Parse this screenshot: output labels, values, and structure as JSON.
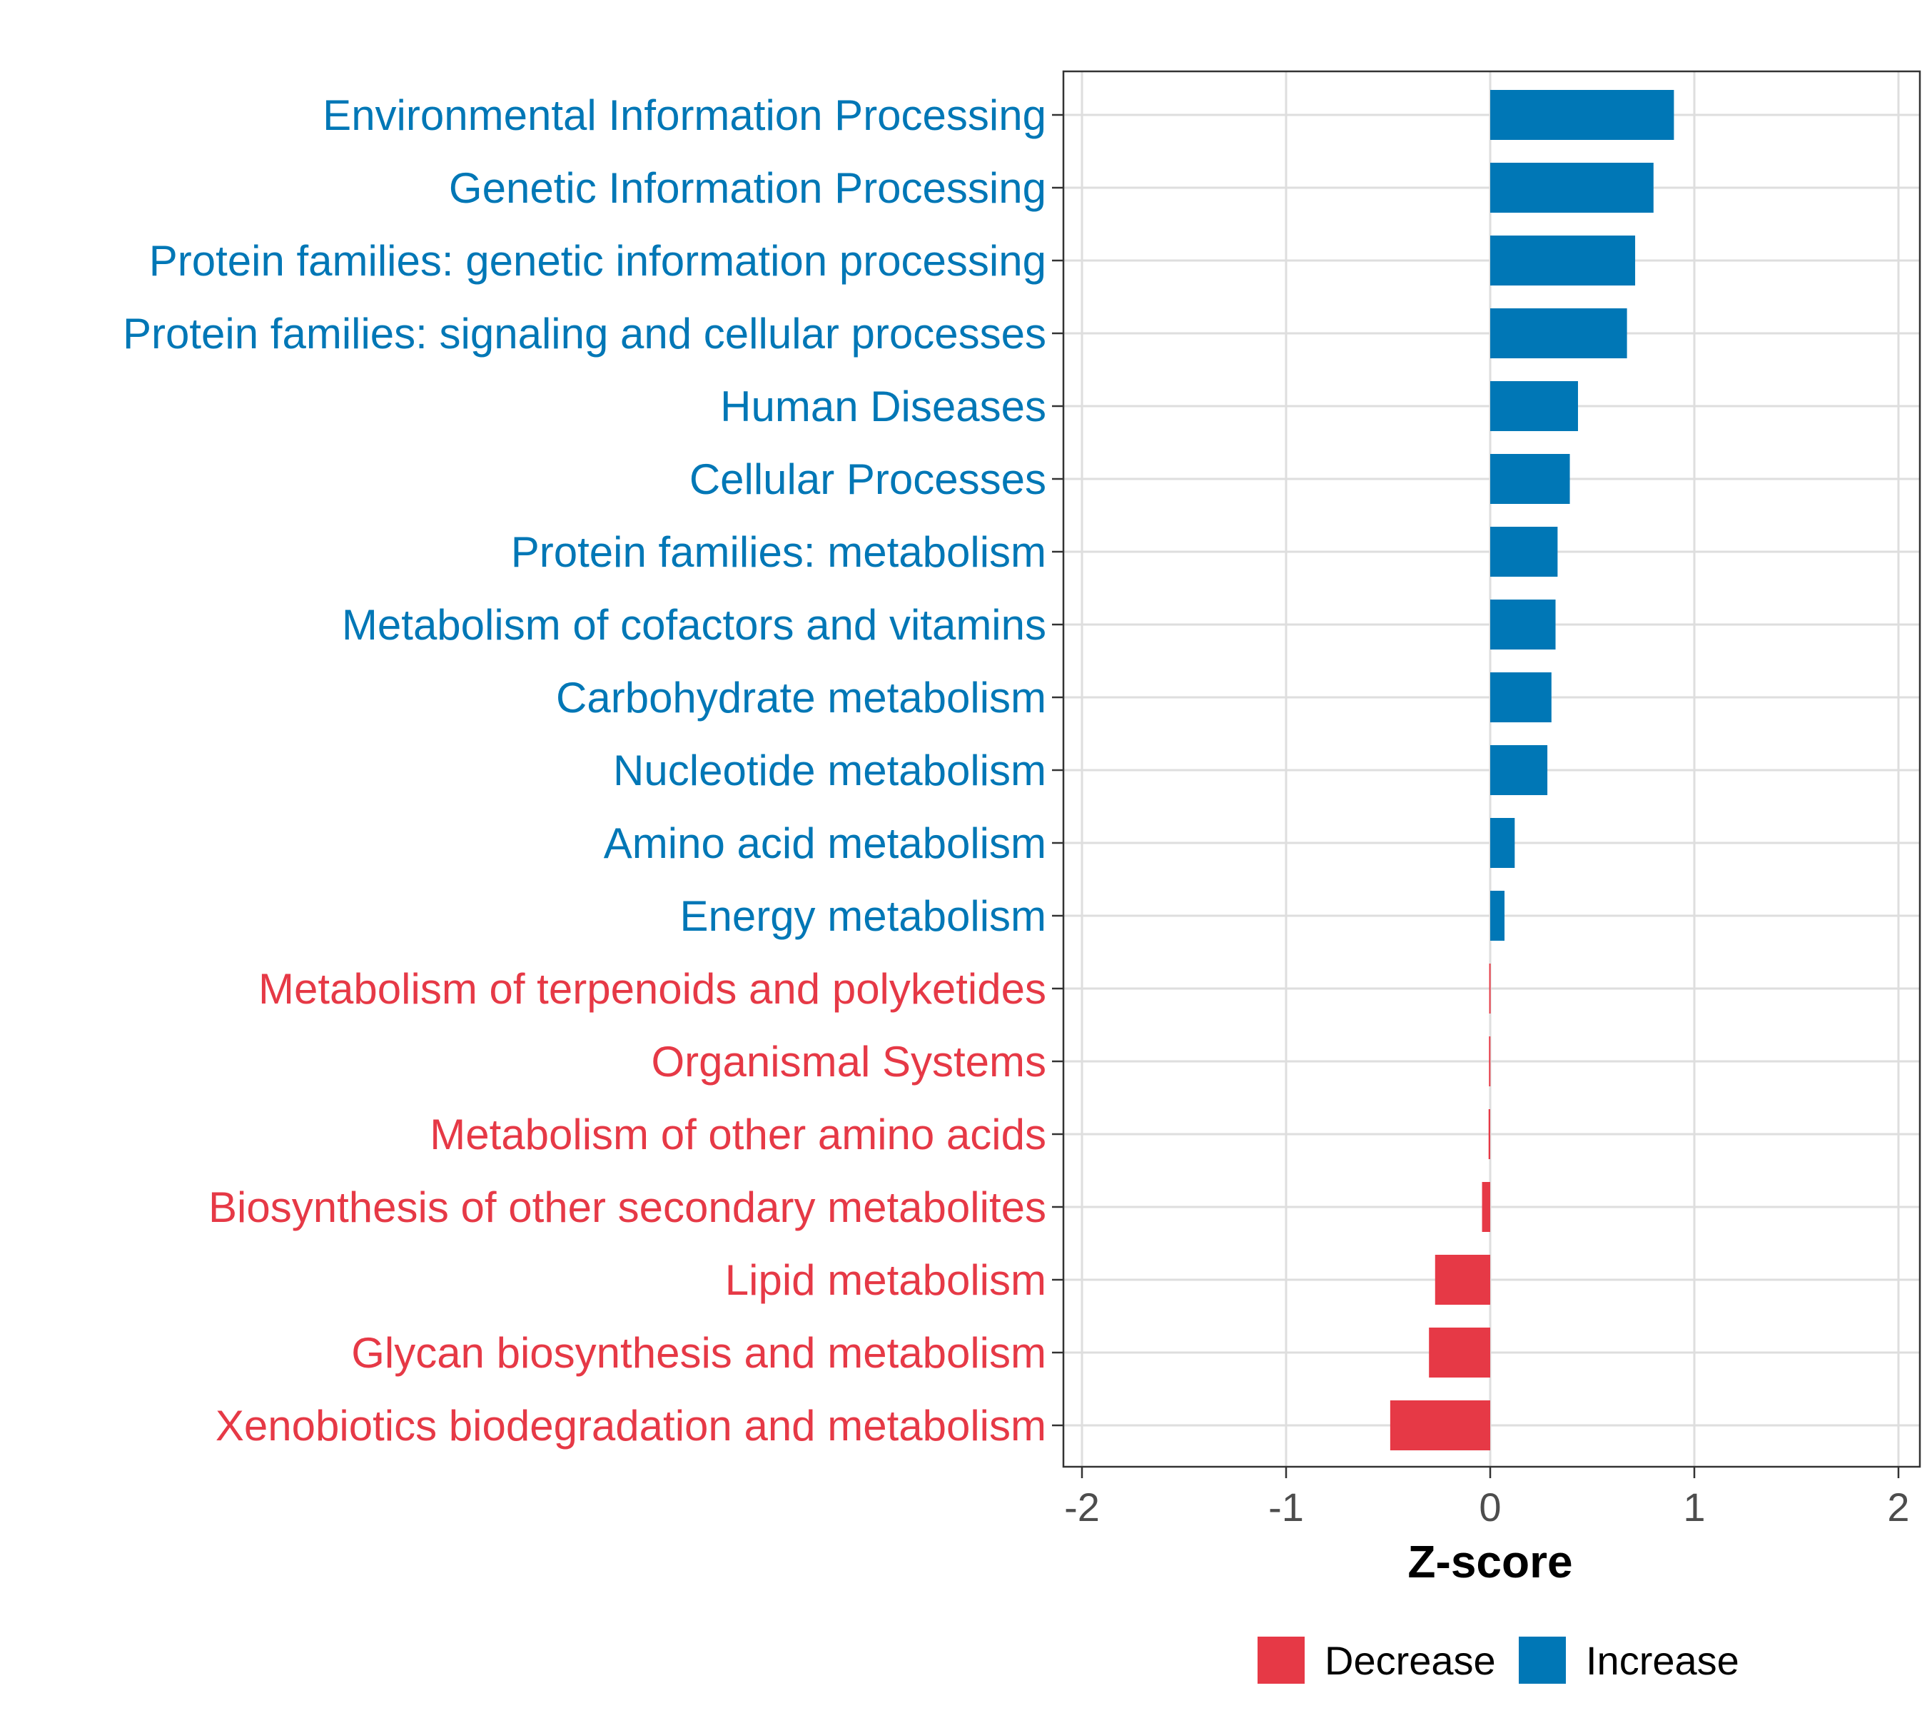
{
  "chart_data": {
    "type": "bar",
    "orientation": "horizontal",
    "categories": [
      "Environmental Information Processing",
      "Genetic Information Processing",
      "Protein families: genetic information processing",
      "Protein families: signaling and cellular processes",
      "Human Diseases",
      "Cellular Processes",
      "Protein families: metabolism",
      "Metabolism of cofactors and vitamins",
      "Carbohydrate metabolism",
      "Nucleotide metabolism",
      "Amino acid metabolism",
      "Energy metabolism",
      "Metabolism of terpenoids and polyketides",
      "Organismal Systems",
      "Metabolism of other amino acids",
      "Biosynthesis of other secondary metabolites",
      "Lipid metabolism",
      "Glycan biosynthesis and metabolism",
      "Xenobiotics biodegradation and metabolism"
    ],
    "values": [
      0.9,
      0.8,
      0.71,
      0.67,
      0.43,
      0.39,
      0.33,
      0.32,
      0.3,
      0.28,
      0.12,
      0.07,
      -0.005,
      -0.006,
      -0.008,
      -0.04,
      -0.27,
      -0.3,
      -0.49
    ],
    "groups": [
      "Increase",
      "Increase",
      "Increase",
      "Increase",
      "Increase",
      "Increase",
      "Increase",
      "Increase",
      "Increase",
      "Increase",
      "Increase",
      "Increase",
      "Decrease",
      "Decrease",
      "Decrease",
      "Decrease",
      "Decrease",
      "Decrease",
      "Decrease"
    ],
    "xlabel": "Z-score",
    "xlim": [
      -2.1,
      2.1
    ],
    "xticks": [
      -2,
      -1,
      0,
      1,
      2
    ],
    "xtick_labels": [
      "-2",
      "-1",
      "0",
      "1",
      "2"
    ],
    "grid": true,
    "legend": {
      "position": "bottom",
      "entries": [
        {
          "label": "Decrease",
          "color": "#E63946"
        },
        {
          "label": "Increase",
          "color": "#0077B6"
        }
      ]
    },
    "colors": {
      "Increase": "#0077B6",
      "Decrease": "#E63946"
    }
  }
}
